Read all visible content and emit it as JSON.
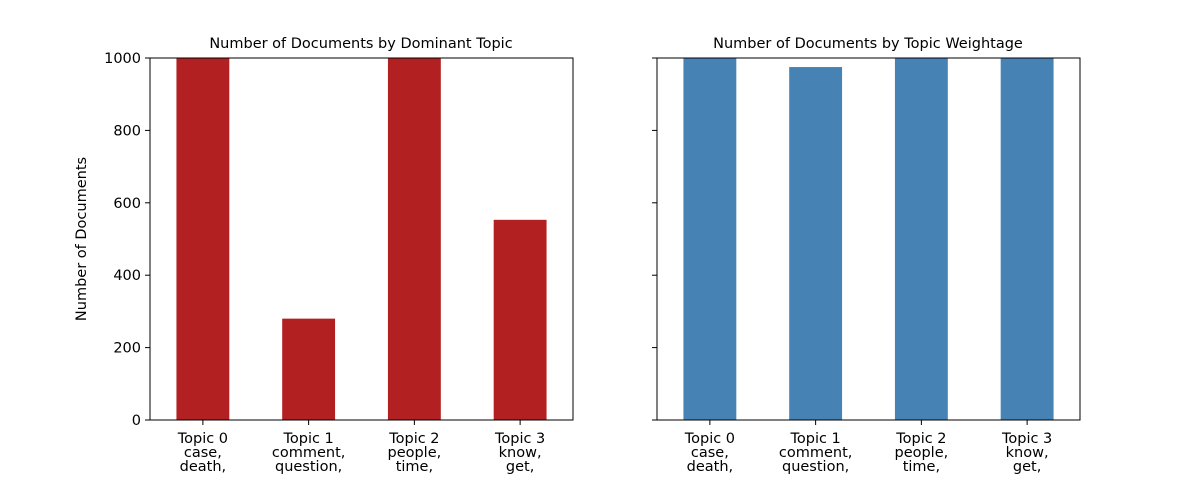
{
  "chart_data": [
    {
      "type": "bar",
      "title": "Number of Documents by Dominant Topic",
      "xlabel": "",
      "ylabel": "Number of Documents",
      "ylim": [
        0,
        1000
      ],
      "yticks": [
        "0",
        "200",
        "400",
        "600",
        "800",
        "1000"
      ],
      "categories": [
        [
          "Topic 0",
          "case,",
          "death,"
        ],
        [
          "Topic 1",
          "comment,",
          "question,"
        ],
        [
          "Topic 2",
          "people,",
          "time,"
        ],
        [
          "Topic 3",
          "know,",
          "get,"
        ]
      ],
      "values": [
        1000,
        280,
        1000,
        553
      ],
      "color": "#b22022"
    },
    {
      "type": "bar",
      "title": "Number of Documents by Topic Weightage",
      "xlabel": "",
      "ylabel": "",
      "ylim": [
        0,
        1000
      ],
      "yticks": [],
      "categories": [
        [
          "Topic 0",
          "case,",
          "death,"
        ],
        [
          "Topic 1",
          "comment,",
          "question,"
        ],
        [
          "Topic 2",
          "people,",
          "time,"
        ],
        [
          "Topic 3",
          "know,",
          "get,"
        ]
      ],
      "values": [
        1000,
        975,
        1000,
        1000
      ],
      "color": "#4682b4"
    }
  ]
}
